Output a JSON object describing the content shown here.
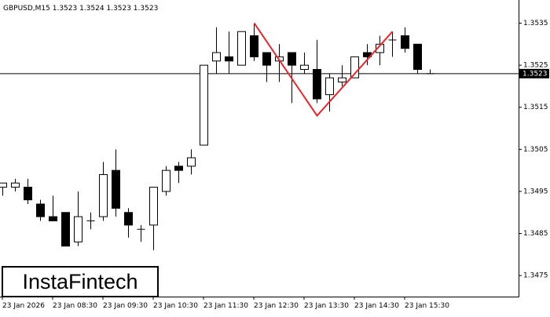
{
  "chart_data": {
    "type": "candlestick",
    "title": "GBPUSD,M15  1.3523 1.3524 1.3523 1.3523",
    "watermark": "InstaFintech",
    "x": [
      "23 Jan 2026",
      null,
      null,
      null,
      "23 Jan 08:30",
      null,
      null,
      null,
      "23 Jan 09:30",
      null,
      null,
      null,
      "23 Jan 10:30",
      null,
      null,
      null,
      "23 Jan 11:30",
      null,
      null,
      null,
      "23 Jan 12:30",
      null,
      null,
      null,
      "23 Jan 13:30",
      null,
      null,
      null,
      "23 Jan 14:30",
      null,
      null,
      null,
      "23 Jan 15:30",
      null,
      null
    ],
    "open": [
      1.3496,
      1.3496,
      1.3496,
      1.3492,
      1.3489,
      1.349,
      1.3483,
      1.3488,
      1.3489,
      1.35,
      1.349,
      1.3486,
      1.3487,
      1.3495,
      1.3501,
      1.3501,
      1.3506,
      1.3526,
      1.3527,
      1.3525,
      1.3532,
      1.3528,
      1.3526,
      1.3528,
      1.3524,
      1.3524,
      1.3518,
      1.3521,
      1.3522,
      1.3528,
      1.3528,
      1.3531,
      1.3532,
      1.353,
      1.3523
    ],
    "high": [
      1.3497,
      1.3498,
      1.3498,
      1.3493,
      1.3494,
      1.349,
      1.3495,
      1.349,
      1.3502,
      1.3505,
      1.3491,
      1.3487,
      1.3496,
      1.3501,
      1.3502,
      1.3505,
      1.3525,
      1.3534,
      1.3533,
      1.3533,
      1.3535,
      1.3528,
      1.353,
      1.3528,
      1.3528,
      1.3531,
      1.3523,
      1.3525,
      1.3527,
      1.353,
      1.3532,
      1.3533,
      1.3534,
      1.353,
      1.3524
    ],
    "low": [
      1.3494,
      1.3495,
      1.3492,
      1.3488,
      1.3488,
      1.3482,
      1.3482,
      1.3486,
      1.3488,
      1.3489,
      1.3484,
      1.3483,
      1.3481,
      1.3494,
      1.3497,
      1.3499,
      1.3506,
      1.3523,
      1.3523,
      1.3525,
      1.3526,
      1.3521,
      1.3521,
      1.3516,
      1.3523,
      1.3516,
      1.3514,
      1.352,
      1.3522,
      1.3525,
      1.3525,
      1.3527,
      1.3528,
      1.3523,
      1.3523
    ],
    "close": [
      1.3497,
      1.3497,
      1.3493,
      1.3489,
      1.3488,
      1.3482,
      1.3489,
      1.3488,
      1.3499,
      1.3491,
      1.3487,
      1.3486,
      1.3496,
      1.35,
      1.35,
      1.3503,
      1.3525,
      1.3528,
      1.3526,
      1.3533,
      1.3527,
      1.3525,
      1.3527,
      1.3525,
      1.3525,
      1.3517,
      1.3522,
      1.3522,
      1.3527,
      1.3527,
      1.353,
      1.3531,
      1.3529,
      1.3524,
      1.3523
    ],
    "up_color": "#ffffff",
    "down_color": "#000000",
    "wick_color": "#000000",
    "ylim": [
      1.347,
      1.35405
    ],
    "yticks": [
      1.3475,
      1.3485,
      1.3495,
      1.3505,
      1.3515,
      1.3525,
      1.3535
    ],
    "price_label": 1.3523,
    "pattern_line": {
      "color": "#e8262b",
      "x_index": [
        20,
        25,
        31
      ],
      "values": [
        1.3535,
        1.3513,
        1.3533
      ]
    }
  }
}
